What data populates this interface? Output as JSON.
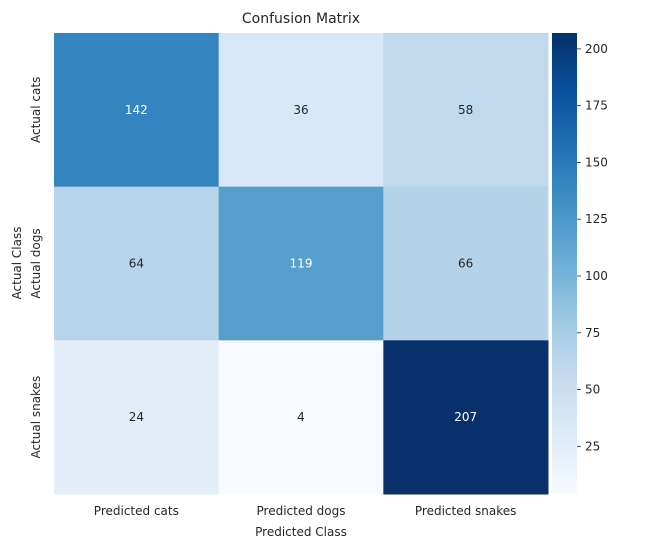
{
  "chart_data": {
    "type": "heatmap",
    "title": "Confusion Matrix",
    "xlabel": "Predicted Class",
    "ylabel": "Actual Class",
    "x_categories": [
      "Predicted cats",
      "Predicted dogs",
      "Predicted snakes"
    ],
    "y_categories": [
      "Actual cats",
      "Actual dogs",
      "Actual snakes"
    ],
    "values": [
      [
        142,
        36,
        58
      ],
      [
        64,
        119,
        66
      ],
      [
        24,
        4,
        207
      ]
    ],
    "colormap": "Blues",
    "colorbar_range": [
      4,
      207
    ],
    "colorbar_ticks": [
      25,
      50,
      75,
      100,
      125,
      150,
      175,
      200
    ]
  }
}
